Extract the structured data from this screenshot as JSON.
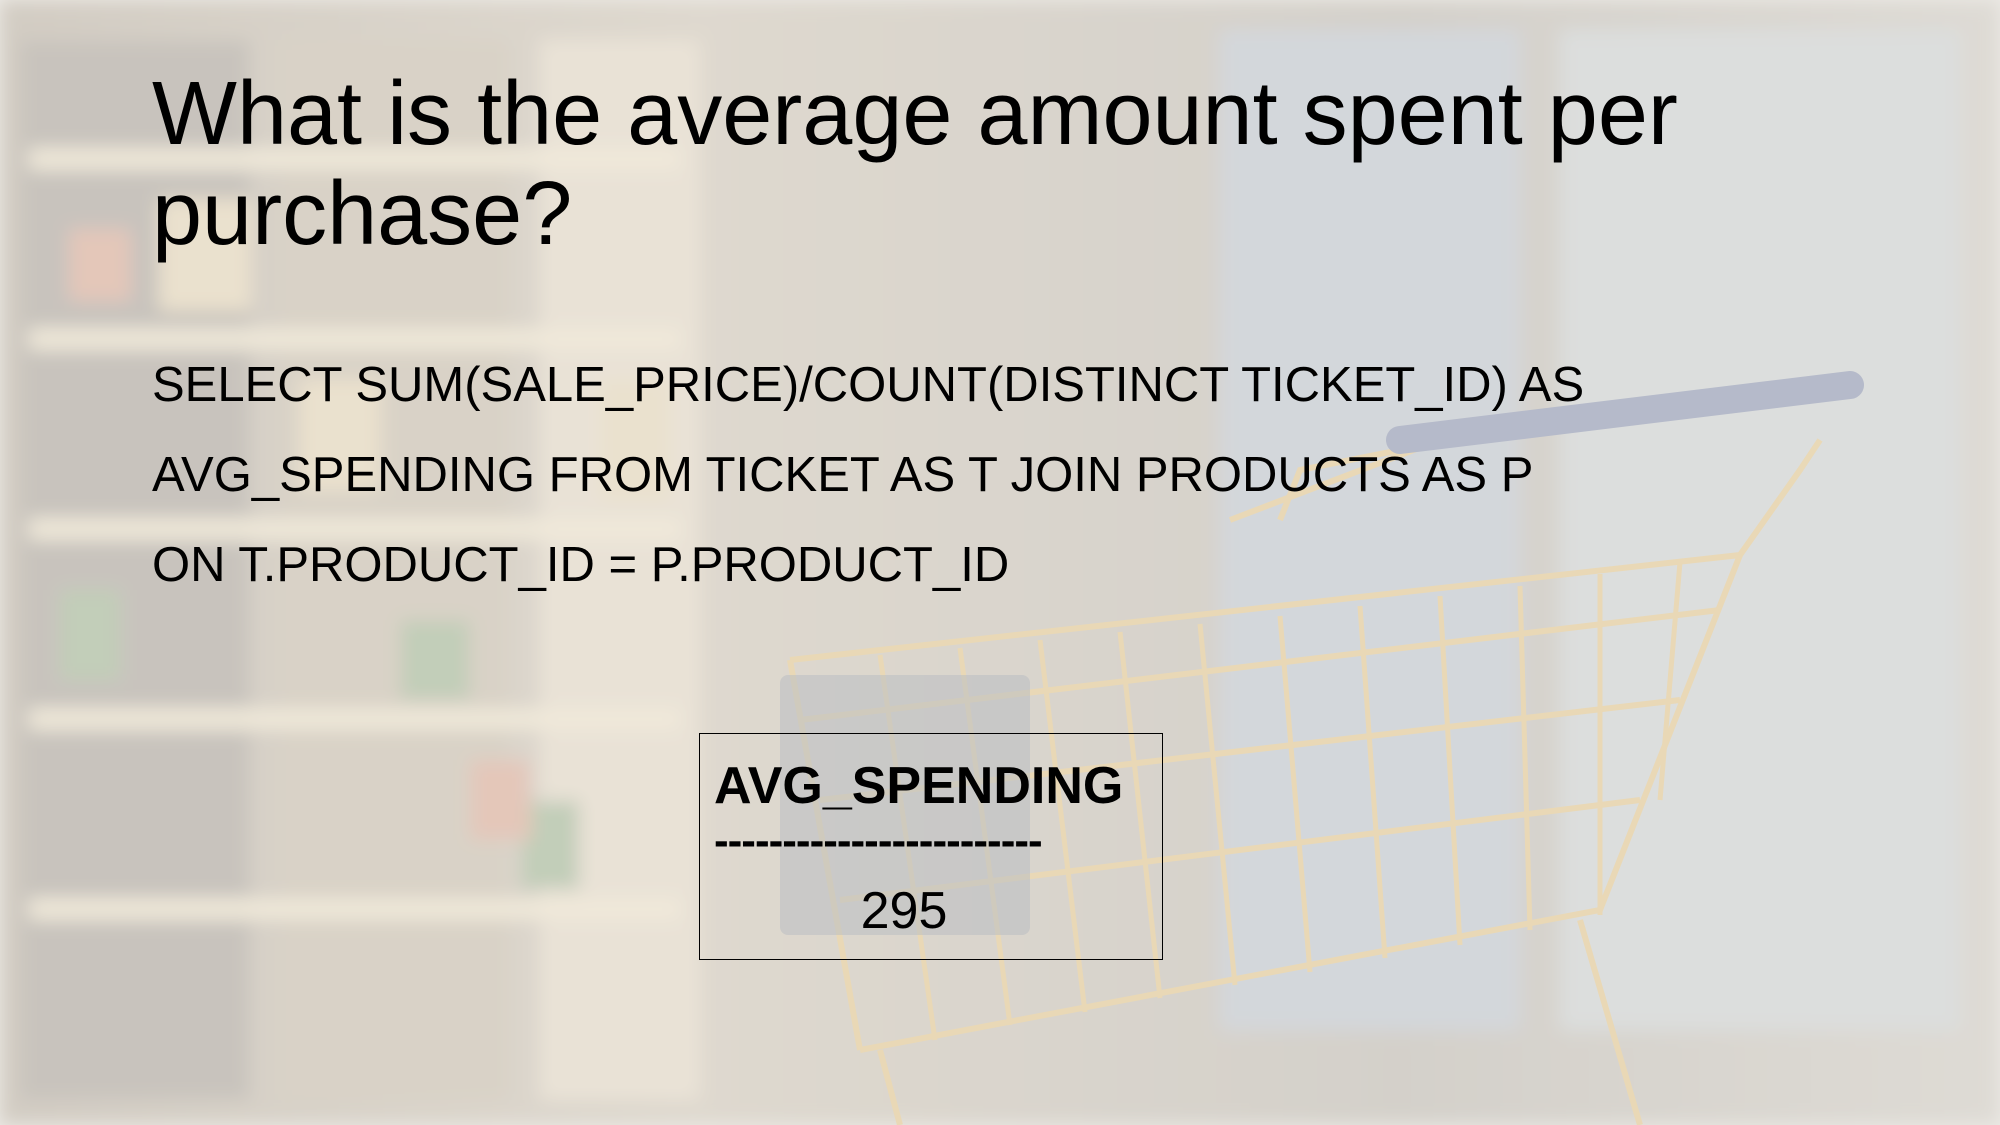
{
  "slide": {
    "title": "What is the average amount spent per purchase?",
    "query_lines": [
      "SELECT SUM(SALE_PRICE)/COUNT(DISTINCT TICKET_ID) AS",
      "AVG_SPENDING FROM TICKET AS T JOIN PRODUCTS AS P",
      "ON T.PRODUCT_ID = P.PRODUCT_ID"
    ],
    "result": {
      "column": "AVG_SPENDING",
      "separator": "------------------------",
      "value": "295"
    }
  },
  "background": {
    "description_icon": "shopping-cart-icon",
    "colors": {
      "aisle": "#b7ab95",
      "cart_wire": "#c79a3c",
      "handle": "#3d4a73",
      "veil": "#ffffff"
    }
  }
}
